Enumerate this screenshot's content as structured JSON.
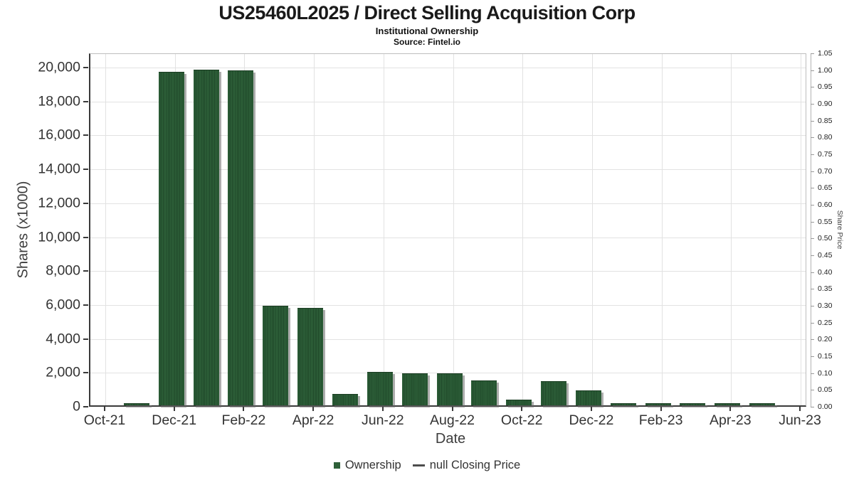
{
  "header": {
    "title": "US25460L2025 / Direct Selling Acquisition Corp",
    "subtitle": "Institutional Ownership",
    "source": "Source: Fintel.io"
  },
  "chart_data": {
    "type": "bar",
    "title": "US25460L2025 / Direct Selling Acquisition Corp",
    "subtitle": "Institutional Ownership",
    "source": "Source: Fintel.io",
    "xlabel": "Date",
    "ylabel_left": "Shares (x1000)",
    "ylabel_right": "Share Price",
    "grid": true,
    "bar_color": "#2e6039",
    "x_axis": {
      "months_span": 21,
      "ticks": [
        {
          "label": "Oct-21",
          "month_index": 0
        },
        {
          "label": "Dec-21",
          "month_index": 2
        },
        {
          "label": "Feb-22",
          "month_index": 4
        },
        {
          "label": "Apr-22",
          "month_index": 6
        },
        {
          "label": "Jun-22",
          "month_index": 8
        },
        {
          "label": "Aug-22",
          "month_index": 10
        },
        {
          "label": "Oct-22",
          "month_index": 12
        },
        {
          "label": "Dec-22",
          "month_index": 14
        },
        {
          "label": "Feb-23",
          "month_index": 16
        },
        {
          "label": "Apr-23",
          "month_index": 18
        },
        {
          "label": "Jun-23",
          "month_index": 20
        }
      ]
    },
    "y_left": {
      "min": 0,
      "max": 20000,
      "ticks": [
        {
          "label": "0",
          "value": 0
        },
        {
          "label": "2,000",
          "value": 2000
        },
        {
          "label": "4,000",
          "value": 4000
        },
        {
          "label": "6,000",
          "value": 6000
        },
        {
          "label": "8,000",
          "value": 8000
        },
        {
          "label": "10,000",
          "value": 10000
        },
        {
          "label": "12,000",
          "value": 12000
        },
        {
          "label": "14,000",
          "value": 14000
        },
        {
          "label": "16,000",
          "value": 16000
        },
        {
          "label": "18,000",
          "value": 18000
        },
        {
          "label": "20,000",
          "value": 20000
        }
      ]
    },
    "y_right": {
      "min": 0,
      "max": 1.05,
      "ticks": [
        {
          "label": "0.00",
          "value": 0.0
        },
        {
          "label": "0.05",
          "value": 0.05
        },
        {
          "label": "0.10",
          "value": 0.1
        },
        {
          "label": "0.15",
          "value": 0.15
        },
        {
          "label": "0.20",
          "value": 0.2
        },
        {
          "label": "0.25",
          "value": 0.25
        },
        {
          "label": "0.30",
          "value": 0.3
        },
        {
          "label": "0.35",
          "value": 0.35
        },
        {
          "label": "0.40",
          "value": 0.4
        },
        {
          "label": "0.45",
          "value": 0.45
        },
        {
          "label": "0.50",
          "value": 0.5
        },
        {
          "label": "0.55",
          "value": 0.55
        },
        {
          "label": "0.60",
          "value": 0.6
        },
        {
          "label": "0.65",
          "value": 0.65
        },
        {
          "label": "0.70",
          "value": 0.7
        },
        {
          "label": "0.75",
          "value": 0.75
        },
        {
          "label": "0.80",
          "value": 0.8
        },
        {
          "label": "0.85",
          "value": 0.85
        },
        {
          "label": "0.90",
          "value": 0.9
        },
        {
          "label": "0.95",
          "value": 0.95
        },
        {
          "label": "1.00",
          "value": 1.0
        },
        {
          "label": "1.05",
          "value": 1.05
        }
      ]
    },
    "series": [
      {
        "name": "Ownership",
        "type": "bar",
        "units": "shares x1000",
        "points": [
          {
            "month": "Nov-21",
            "month_index": 1,
            "shares_k": 120
          },
          {
            "month": "Dec-21",
            "month_index": 2,
            "shares_k": 19650
          },
          {
            "month": "Jan-22",
            "month_index": 3,
            "shares_k": 19800
          },
          {
            "month": "Feb-22",
            "month_index": 4,
            "shares_k": 19760
          },
          {
            "month": "Mar-22",
            "month_index": 5,
            "shares_k": 5890
          },
          {
            "month": "Apr-22",
            "month_index": 6,
            "shares_k": 5750
          },
          {
            "month": "May-22",
            "month_index": 7,
            "shares_k": 660
          },
          {
            "month": "Jun-22",
            "month_index": 8,
            "shares_k": 1970
          },
          {
            "month": "Jul-22",
            "month_index": 9,
            "shares_k": 1900
          },
          {
            "month": "Aug-22",
            "month_index": 10,
            "shares_k": 1900
          },
          {
            "month": "Sep-22",
            "month_index": 11,
            "shares_k": 1450
          },
          {
            "month": "Oct-22",
            "month_index": 12,
            "shares_k": 320
          },
          {
            "month": "Nov-22",
            "month_index": 13,
            "shares_k": 1410
          },
          {
            "month": "Dec-22",
            "month_index": 14,
            "shares_k": 880
          },
          {
            "month": "Jan-23",
            "month_index": 15,
            "shares_k": 110
          },
          {
            "month": "Feb-23",
            "month_index": 16,
            "shares_k": 110
          },
          {
            "month": "Mar-23",
            "month_index": 17,
            "shares_k": 110
          },
          {
            "month": "Apr-23",
            "month_index": 18,
            "shares_k": 110
          },
          {
            "month": "May-23",
            "month_index": 19,
            "shares_k": 110
          }
        ]
      },
      {
        "name": "null Closing Price",
        "type": "line",
        "points": []
      }
    ],
    "legend": {
      "position": "bottom",
      "items": [
        {
          "label": "Ownership",
          "marker": "square",
          "color": "#2e6039"
        },
        {
          "label": "null Closing Price",
          "marker": "dash",
          "color": "#4d4d4d"
        }
      ]
    }
  },
  "colors": {
    "bar_fill": "#2e6039",
    "bar_stripe": "#1f4829",
    "gridline": "#e2e2e2",
    "axis_spine": "#3a3a3a",
    "frame": "#bdbdbd",
    "text_primary": "#1a1a1a",
    "text_tick": "#333333"
  }
}
